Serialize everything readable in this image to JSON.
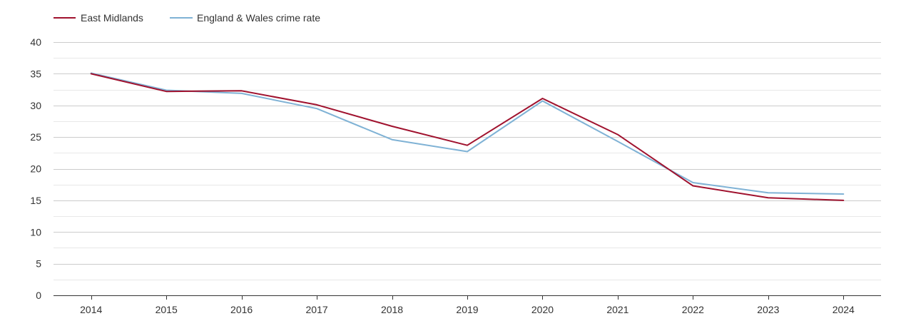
{
  "chart_data": {
    "type": "line",
    "title": "",
    "xlabel": "",
    "ylabel": "",
    "categories": [
      "2014",
      "2015",
      "2016",
      "2017",
      "2018",
      "2019",
      "2020",
      "2021",
      "2022",
      "2023",
      "2024"
    ],
    "ylim": [
      0,
      40
    ],
    "yticks": [
      "0",
      "5",
      "10",
      "15",
      "20",
      "25",
      "30",
      "35",
      "40"
    ],
    "grid": true,
    "legend_position": "top-left",
    "series": [
      {
        "name": "East Midlands",
        "color": "#a0122e",
        "values": [
          35.0,
          32.2,
          32.3,
          30.1,
          26.7,
          23.7,
          31.1,
          25.4,
          17.3,
          15.4,
          15.0
        ]
      },
      {
        "name": "England & Wales crime rate",
        "color": "#7fb2d5",
        "values": [
          35.1,
          32.4,
          31.9,
          29.5,
          24.6,
          22.7,
          30.7,
          24.3,
          17.8,
          16.2,
          16.0
        ]
      }
    ]
  }
}
